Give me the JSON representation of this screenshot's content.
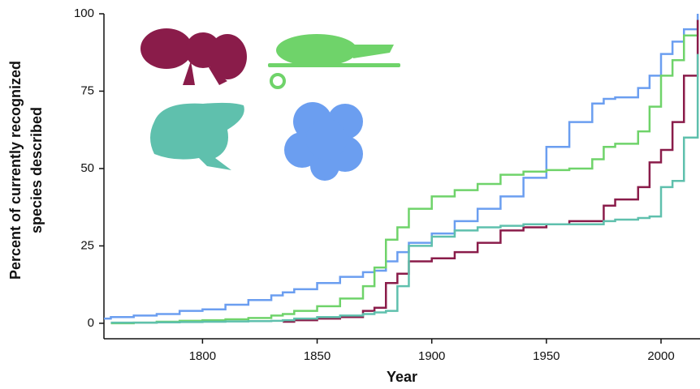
{
  "chart_data": {
    "type": "line",
    "xlabel": "Year",
    "ylabel": [
      "Percent of currently recognized",
      "species described"
    ],
    "x": [
      1757,
      1760,
      1770,
      1780,
      1790,
      1800,
      1810,
      1820,
      1830,
      1835,
      1840,
      1850,
      1860,
      1870,
      1875,
      1880,
      1885,
      1890,
      1900,
      1910,
      1920,
      1930,
      1940,
      1950,
      1960,
      1970,
      1975,
      1980,
      1990,
      1995,
      2000,
      2005,
      2010,
      2016
    ],
    "series": [
      {
        "color": "#6b9ef0",
        "values": [
          1.5,
          2,
          2.5,
          3,
          4,
          4.5,
          6,
          7.5,
          9,
          10,
          11,
          13,
          15,
          16.5,
          17,
          20,
          23,
          26,
          29,
          33,
          37,
          41,
          47,
          57,
          65,
          71,
          72.5,
          73,
          76,
          80,
          87,
          91,
          95,
          100
        ]
      },
      {
        "color": "#6fd36a",
        "values": [
          null,
          0,
          0.2,
          0.5,
          0.8,
          1,
          1.3,
          1.7,
          2.5,
          3,
          4,
          5.5,
          8,
          12,
          18,
          27,
          31,
          37,
          41,
          43,
          45,
          48,
          49,
          49.5,
          50,
          53,
          57,
          58,
          62,
          70,
          80,
          85,
          93,
          98
        ]
      },
      {
        "color": "#8a1c4a",
        "values": [
          null,
          null,
          null,
          null,
          null,
          null,
          null,
          null,
          null,
          0.5,
          1,
          1.5,
          2,
          4,
          5,
          13,
          16,
          20,
          21,
          23,
          26,
          30,
          31,
          32,
          33,
          33,
          38,
          40,
          44,
          52,
          56,
          65,
          80,
          98
        ]
      },
      {
        "color": "#5fc0ad",
        "values": [
          null,
          0.2,
          0.2,
          0.3,
          0.4,
          0.5,
          0.6,
          0.7,
          0.8,
          1,
          1.5,
          2,
          2.5,
          3,
          3.5,
          4,
          12,
          25,
          28,
          30,
          31,
          31.5,
          32,
          32,
          32,
          32,
          33,
          33.5,
          34,
          34.5,
          44,
          46,
          60,
          87
        ]
      }
    ],
    "xlim": [
      1757,
      2017
    ],
    "xticks": [
      1800,
      1850,
      1900,
      1950,
      2000
    ],
    "ylim": [
      -5,
      100
    ],
    "yticks": [
      0,
      25,
      50,
      75,
      100
    ]
  }
}
